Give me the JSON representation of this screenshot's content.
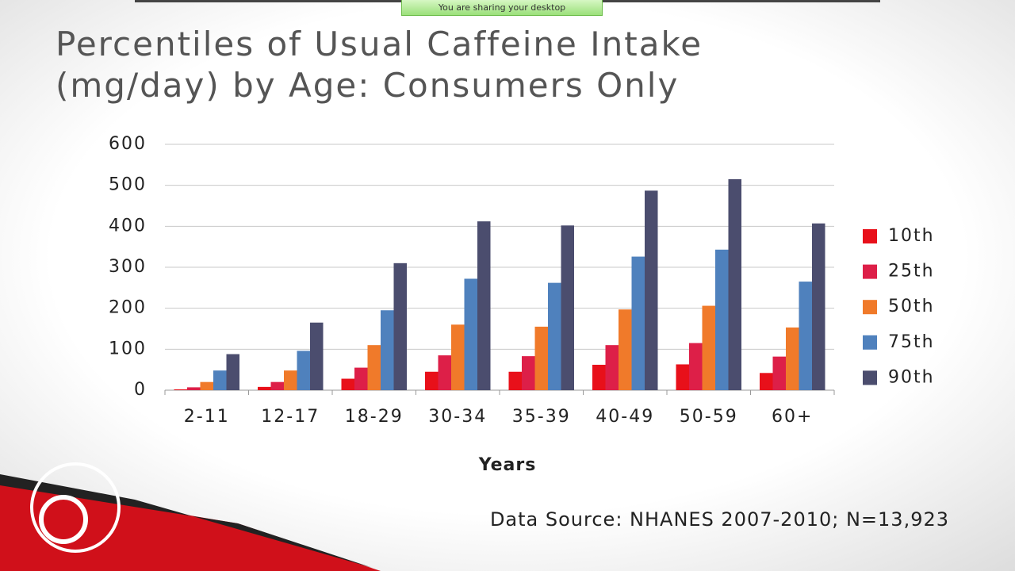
{
  "banner": "You are sharing your desktop",
  "chart_data": {
    "type": "bar",
    "title": "Percentiles of Usual Caffeine Intake (mg/day) by Age: Consumers Only",
    "x_label": "Years",
    "source": "Data Source: NHANES 2007-2010; N=13,923",
    "categories": [
      "2-11",
      "12-17",
      "18-29",
      "30-34",
      "35-39",
      "40-49",
      "50-59",
      "60+"
    ],
    "series": [
      {
        "name": "10th",
        "color": "#e8101a",
        "values": [
          2,
          8,
          28,
          45,
          45,
          62,
          63,
          42
        ]
      },
      {
        "name": "25th",
        "color": "#dd1f48",
        "values": [
          7,
          20,
          55,
          85,
          83,
          110,
          115,
          82
        ]
      },
      {
        "name": "50th",
        "color": "#f07a2a",
        "values": [
          20,
          48,
          110,
          160,
          155,
          197,
          206,
          153
        ]
      },
      {
        "name": "75th",
        "color": "#4f81bd",
        "values": [
          48,
          96,
          195,
          272,
          262,
          326,
          343,
          265
        ]
      },
      {
        "name": "90th",
        "color": "#4b4d6e",
        "values": [
          88,
          165,
          310,
          412,
          402,
          487,
          515,
          407
        ]
      }
    ],
    "ylim": [
      0,
      600
    ],
    "yticks": [
      0,
      100,
      200,
      300,
      400,
      500,
      600
    ],
    "grid": true,
    "legend": "right"
  }
}
